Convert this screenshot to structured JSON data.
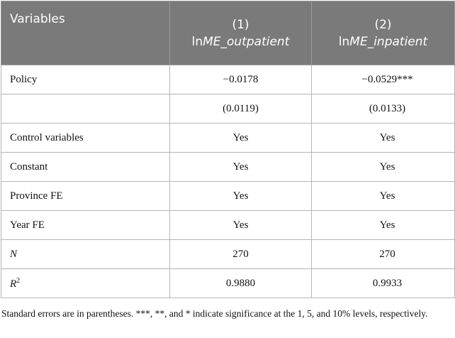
{
  "table": {
    "header": {
      "col0": "Variables",
      "col1_num": "(1)",
      "col1_prefix": "ln",
      "col1_italic": "ME_outpatient",
      "col2_num": "(2)",
      "col2_prefix": "ln",
      "col2_italic": "ME_inpatient"
    },
    "rows": [
      {
        "name": "Policy",
        "v1": "−0.0178",
        "v2": "−0.0529***"
      },
      {
        "name": "",
        "v1": "(0.0119)",
        "v2": "(0.0133)"
      },
      {
        "name": "Control variables",
        "v1": "Yes",
        "v2": "Yes"
      },
      {
        "name": "Constant",
        "v1": "Yes",
        "v2": "Yes"
      },
      {
        "name": "Province FE",
        "v1": "Yes",
        "v2": "Yes"
      },
      {
        "name": "Year FE",
        "v1": "Yes",
        "v2": "Yes"
      },
      {
        "name": "N",
        "v1": "270",
        "v2": "270"
      },
      {
        "name": "R",
        "name_sup": "2",
        "v1": "0.9880",
        "v2": "0.9933"
      }
    ]
  },
  "note": "Standard errors are in parentheses. ***, **, and * indicate significance at the 1, 5, and 10% levels, respectively."
}
